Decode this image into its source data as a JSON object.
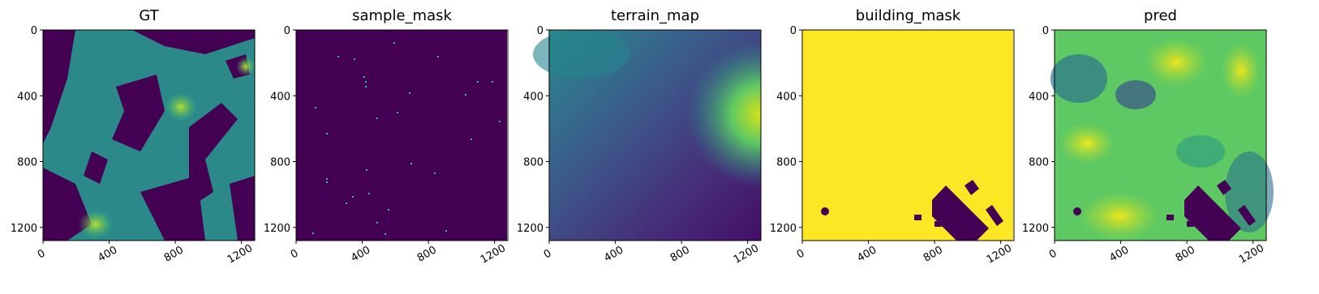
{
  "chart_data": [
    {
      "type": "image",
      "title": "GT",
      "xlim": [
        0,
        1280
      ],
      "ylim": [
        1280,
        0
      ],
      "xticks": [
        0,
        400,
        800,
        1200
      ],
      "yticks": [
        0,
        400,
        800,
        1200
      ]
    },
    {
      "type": "image",
      "title": "sample_mask",
      "xlim": [
        0,
        1280
      ],
      "ylim": [
        1280,
        0
      ],
      "xticks": [
        0,
        400,
        800,
        1200
      ],
      "yticks": [
        0,
        400,
        800,
        1200
      ]
    },
    {
      "type": "image",
      "title": "terrain_map",
      "xlim": [
        0,
        1280
      ],
      "ylim": [
        1280,
        0
      ],
      "xticks": [
        0,
        400,
        800,
        1200
      ],
      "yticks": [
        0,
        400,
        800,
        1200
      ]
    },
    {
      "type": "image",
      "title": "building_mask",
      "xlim": [
        0,
        1280
      ],
      "ylim": [
        1280,
        0
      ],
      "xticks": [
        0,
        400,
        800,
        1200
      ],
      "yticks": [
        0,
        400,
        800,
        1200
      ]
    },
    {
      "type": "image",
      "title": "pred",
      "xlim": [
        0,
        1280
      ],
      "ylim": [
        1280,
        0
      ],
      "xticks": [
        0,
        400,
        800,
        1200
      ],
      "yticks": [
        0,
        400,
        800,
        1200
      ]
    }
  ]
}
